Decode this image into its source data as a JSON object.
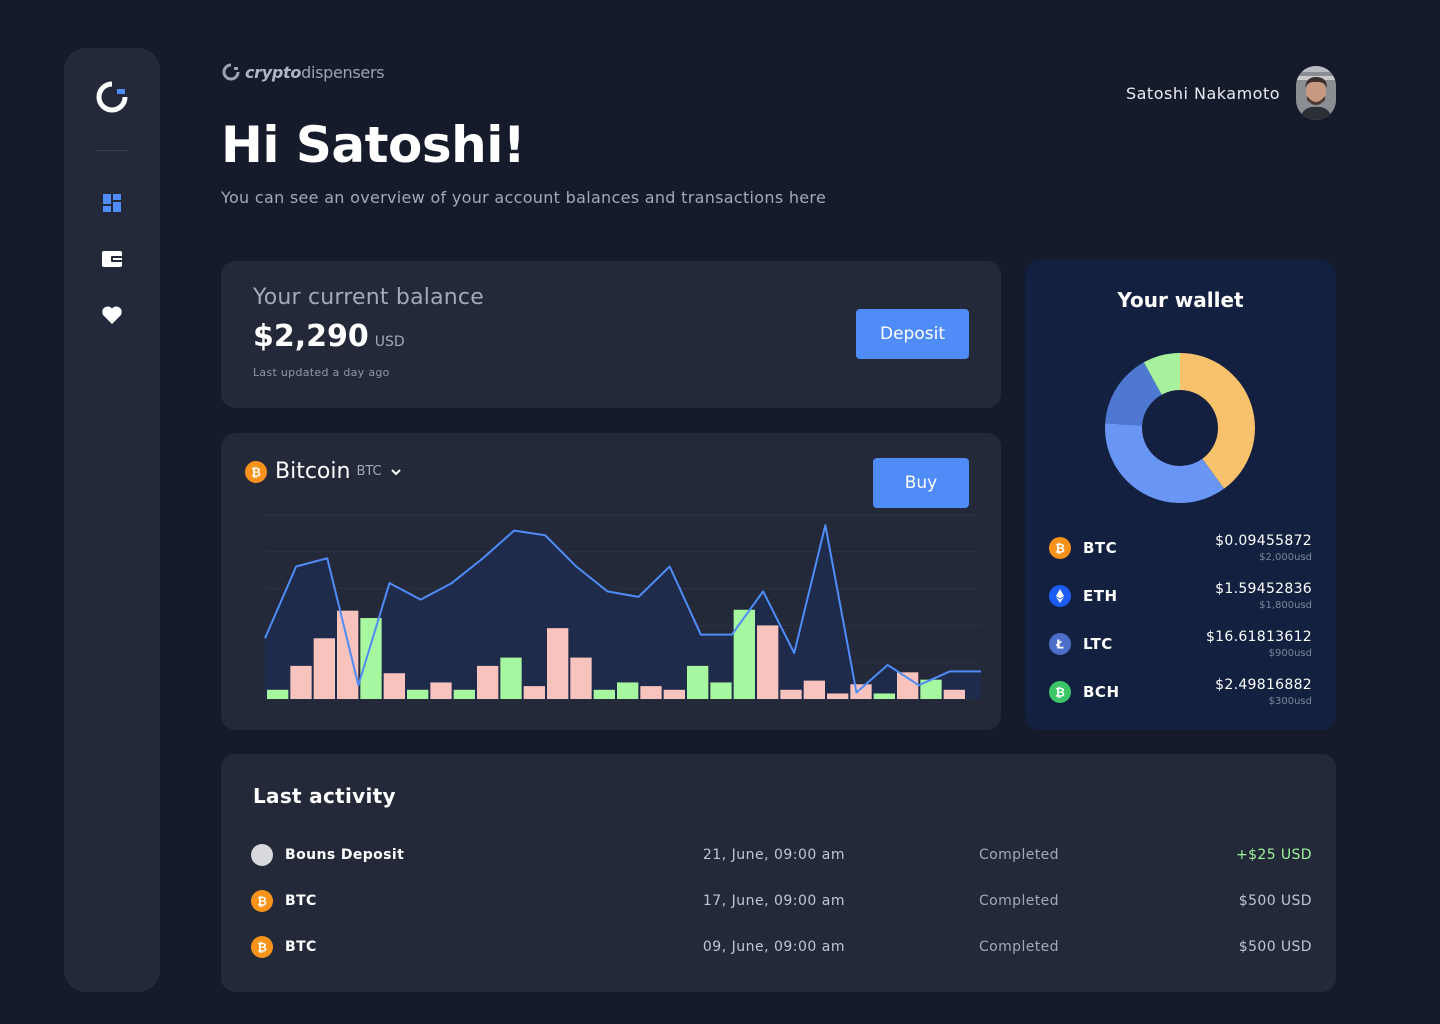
{
  "brand": {
    "name_bold": "crypto",
    "name_light": "dispensers"
  },
  "header": {
    "greeting": "Hi Satoshi!",
    "subtitle": "You can see an overview of your account balances and transactions here",
    "user_name": "Satoshi Nakamoto"
  },
  "sidebar": {
    "items": [
      {
        "icon": "dashboard-icon"
      },
      {
        "icon": "wallet-icon"
      },
      {
        "icon": "heart-icon"
      }
    ],
    "accent": "#4f8cf8"
  },
  "balance": {
    "label": "Your current balance",
    "amount": "$2,290",
    "currency": "USD",
    "updated": "Last updated a day ago",
    "deposit_label": "Deposit"
  },
  "coin_chart": {
    "coin_name": "Bitcoin",
    "coin_ticker": "BTC",
    "buy_label": "Buy"
  },
  "chart_data": {
    "type": "bar",
    "title": "",
    "bars": [
      {
        "value": 1.0,
        "color": "green"
      },
      {
        "value": 3.6,
        "color": "red"
      },
      {
        "value": 6.6,
        "color": "red"
      },
      {
        "value": 9.6,
        "color": "red"
      },
      {
        "value": 8.8,
        "color": "green"
      },
      {
        "value": 2.8,
        "color": "red"
      },
      {
        "value": 1.0,
        "color": "green"
      },
      {
        "value": 1.8,
        "color": "red"
      },
      {
        "value": 1.0,
        "color": "green"
      },
      {
        "value": 3.6,
        "color": "red"
      },
      {
        "value": 4.5,
        "color": "green"
      },
      {
        "value": 1.4,
        "color": "red"
      },
      {
        "value": 7.7,
        "color": "red"
      },
      {
        "value": 4.5,
        "color": "red"
      },
      {
        "value": 1.0,
        "color": "green"
      },
      {
        "value": 1.8,
        "color": "green"
      },
      {
        "value": 1.4,
        "color": "red"
      },
      {
        "value": 1.0,
        "color": "red"
      },
      {
        "value": 3.6,
        "color": "green"
      },
      {
        "value": 1.8,
        "color": "green"
      },
      {
        "value": 9.7,
        "color": "green"
      },
      {
        "value": 8.0,
        "color": "red"
      },
      {
        "value": 1.0,
        "color": "red"
      },
      {
        "value": 2.0,
        "color": "red"
      },
      {
        "value": 0.6,
        "color": "red"
      },
      {
        "value": 1.6,
        "color": "red"
      },
      {
        "value": 0.6,
        "color": "green"
      },
      {
        "value": 2.9,
        "color": "red"
      },
      {
        "value": 2.1,
        "color": "green"
      },
      {
        "value": 1.0,
        "color": "red"
      }
    ],
    "line": [
      6.6,
      14.4,
      15.3,
      1.5,
      12.6,
      10.8,
      12.6,
      15.3,
      18.3,
      17.8,
      14.4,
      11.7,
      11.1,
      14.4,
      7.0,
      7.0,
      11.7,
      5.0,
      18.9,
      0.7,
      3.7,
      1.5,
      3.0,
      3.0
    ],
    "ylim": [
      0,
      20
    ],
    "grid": true,
    "colors": {
      "green": "#a6f7a0",
      "red": "#f8c2bd",
      "line": "#4f8cf8",
      "fill": "#1e2b4d"
    }
  },
  "wallet": {
    "title": "Your wallet",
    "donut": [
      {
        "label": "BTC",
        "value": 40,
        "color": "#f7c26b"
      },
      {
        "label": "ETH",
        "value": 36,
        "color": "#6995f5"
      },
      {
        "label": "LTC",
        "value": 16,
        "color": "#4e78d1"
      },
      {
        "label": "BCH",
        "value": 8,
        "color": "#a6f09e"
      }
    ],
    "rows": [
      {
        "symbol": "BTC",
        "amount": "$0.09455872",
        "usd": "$2,000usd",
        "icon": "bitcoin-icon",
        "color": "#f7931a"
      },
      {
        "symbol": "ETH",
        "amount": "$1.59452836",
        "usd": "$1,800usd",
        "icon": "ethereum-icon",
        "color": "#1a5cf5"
      },
      {
        "symbol": "LTC",
        "amount": "$16.61813612",
        "usd": "$900usd",
        "icon": "litecoin-icon",
        "color": "#4e6fc9"
      },
      {
        "symbol": "BCH",
        "amount": "$2.49816882",
        "usd": "$300usd",
        "icon": "bitcoin-cash-icon",
        "color": "#3cc668"
      }
    ]
  },
  "activity": {
    "title": "Last activity",
    "rows": [
      {
        "name": "Bouns Deposit",
        "date": "21, June, 09:00 am",
        "status": "Completed",
        "amount": "+$25 USD",
        "icon": "deposit-dot-icon"
      },
      {
        "name": "BTC",
        "date": "17, June, 09:00 am",
        "status": "Completed",
        "amount": "$500 USD",
        "icon": "bitcoin-icon"
      },
      {
        "name": "BTC",
        "date": "09, June, 09:00 am",
        "status": "Completed",
        "amount": "$500 USD",
        "icon": "bitcoin-icon"
      }
    ]
  }
}
